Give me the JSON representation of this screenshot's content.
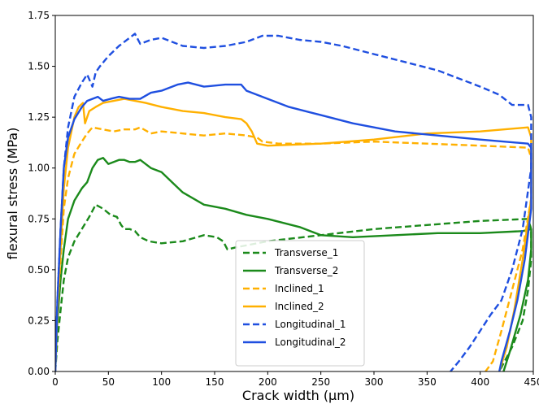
{
  "chart_data": {
    "type": "line",
    "title": "",
    "xlabel": "Crack width (µm)",
    "ylabel": "flexural stress (MPa)",
    "xlim": [
      0,
      450
    ],
    "ylim": [
      0,
      1.75
    ],
    "xticks": [
      0,
      50,
      100,
      150,
      200,
      250,
      300,
      350,
      400,
      450
    ],
    "yticks": [
      0.0,
      0.25,
      0.5,
      0.75,
      1.0,
      1.25,
      1.5,
      1.75
    ],
    "xtick_labels": [
      "0",
      "50",
      "100",
      "150",
      "200",
      "250",
      "300",
      "350",
      "400",
      "450"
    ],
    "ytick_labels": [
      "0.00",
      "0.25",
      "0.50",
      "0.75",
      "1.00",
      "1.25",
      "1.50",
      "1.75"
    ],
    "grid": false,
    "legend_position": "lower-center",
    "series": [
      {
        "name": "Transverse_1",
        "color": "#1b8a1b",
        "dash": "dashed",
        "x": [
          0,
          2,
          5,
          8,
          12,
          18,
          25,
          32,
          38,
          45,
          52,
          58,
          62,
          65,
          70,
          75,
          80,
          88,
          100,
          120,
          140,
          152,
          158,
          162,
          170,
          200,
          250,
          300,
          350,
          400,
          445,
          448,
          448,
          445,
          440,
          430,
          422,
          418
        ],
        "y": [
          0,
          0.15,
          0.3,
          0.45,
          0.56,
          0.64,
          0.7,
          0.76,
          0.82,
          0.8,
          0.77,
          0.76,
          0.72,
          0.7,
          0.7,
          0.69,
          0.66,
          0.64,
          0.63,
          0.64,
          0.67,
          0.66,
          0.64,
          0.6,
          0.61,
          0.64,
          0.67,
          0.7,
          0.72,
          0.74,
          0.75,
          0.7,
          0.55,
          0.4,
          0.25,
          0.12,
          0.04,
          0
        ]
      },
      {
        "name": "Transverse_2",
        "color": "#1b8a1b",
        "dash": "solid",
        "x": [
          0,
          2,
          5,
          8,
          12,
          18,
          25,
          30,
          35,
          40,
          45,
          50,
          55,
          60,
          65,
          70,
          75,
          80,
          90,
          100,
          110,
          120,
          140,
          160,
          180,
          200,
          230,
          250,
          280,
          320,
          360,
          400,
          440,
          448,
          448,
          445,
          438,
          428,
          422
        ],
        "y": [
          0,
          0.25,
          0.45,
          0.6,
          0.75,
          0.84,
          0.9,
          0.93,
          1.0,
          1.04,
          1.05,
          1.02,
          1.03,
          1.04,
          1.04,
          1.03,
          1.03,
          1.04,
          1.0,
          0.98,
          0.93,
          0.88,
          0.82,
          0.8,
          0.77,
          0.75,
          0.71,
          0.67,
          0.66,
          0.67,
          0.68,
          0.68,
          0.69,
          0.7,
          0.6,
          0.45,
          0.28,
          0.1,
          0
        ]
      },
      {
        "name": "Inclined_1",
        "color": "#ffb000",
        "dash": "dashed",
        "x": [
          0,
          2,
          5,
          8,
          12,
          18,
          25,
          30,
          35,
          45,
          55,
          65,
          75,
          80,
          90,
          100,
          120,
          140,
          160,
          180,
          190,
          195,
          210,
          250,
          300,
          350,
          400,
          445,
          448,
          448,
          440,
          430,
          420,
          412,
          405
        ],
        "y": [
          0,
          0.3,
          0.55,
          0.8,
          0.95,
          1.07,
          1.13,
          1.17,
          1.2,
          1.19,
          1.18,
          1.19,
          1.19,
          1.2,
          1.17,
          1.18,
          1.17,
          1.16,
          1.17,
          1.16,
          1.15,
          1.13,
          1.12,
          1.12,
          1.13,
          1.12,
          1.11,
          1.1,
          1.05,
          0.85,
          0.6,
          0.4,
          0.2,
          0.05,
          0
        ]
      },
      {
        "name": "Inclined_2",
        "color": "#ffb000",
        "dash": "solid",
        "x": [
          0,
          2,
          5,
          8,
          12,
          18,
          22,
          26,
          28,
          32,
          38,
          45,
          55,
          65,
          75,
          85,
          100,
          120,
          140,
          160,
          175,
          180,
          185,
          190,
          200,
          250,
          300,
          350,
          400,
          445,
          448,
          448,
          440,
          432,
          425,
          418
        ],
        "y": [
          0,
          0.3,
          0.6,
          0.9,
          1.1,
          1.25,
          1.3,
          1.32,
          1.22,
          1.28,
          1.3,
          1.32,
          1.33,
          1.34,
          1.33,
          1.32,
          1.3,
          1.28,
          1.27,
          1.25,
          1.24,
          1.22,
          1.18,
          1.12,
          1.11,
          1.12,
          1.14,
          1.17,
          1.18,
          1.2,
          1.15,
          0.85,
          0.55,
          0.3,
          0.12,
          0
        ]
      },
      {
        "name": "Longitudinal_1",
        "color": "#1f4fe0",
        "dash": "dashed",
        "x": [
          0,
          2,
          5,
          8,
          12,
          18,
          25,
          30,
          35,
          38,
          42,
          50,
          60,
          70,
          75,
          80,
          90,
          100,
          110,
          120,
          140,
          160,
          180,
          195,
          210,
          230,
          250,
          270,
          300,
          330,
          360,
          380,
          400,
          418,
          430,
          445,
          448,
          448,
          440,
          430,
          420,
          410,
          400,
          390,
          380,
          372
        ],
        "y": [
          0,
          0.35,
          0.7,
          1.0,
          1.2,
          1.35,
          1.42,
          1.46,
          1.4,
          1.47,
          1.5,
          1.55,
          1.6,
          1.64,
          1.66,
          1.61,
          1.63,
          1.64,
          1.62,
          1.6,
          1.59,
          1.6,
          1.62,
          1.65,
          1.65,
          1.63,
          1.62,
          1.6,
          1.56,
          1.52,
          1.48,
          1.44,
          1.4,
          1.36,
          1.31,
          1.31,
          1.25,
          1.0,
          0.7,
          0.5,
          0.35,
          0.28,
          0.2,
          0.12,
          0.05,
          0
        ]
      },
      {
        "name": "Longitudinal_2",
        "color": "#1f4fe0",
        "dash": "solid",
        "x": [
          0,
          2,
          5,
          8,
          12,
          18,
          25,
          30,
          35,
          40,
          45,
          52,
          60,
          70,
          80,
          90,
          100,
          115,
          125,
          140,
          160,
          175,
          180,
          200,
          220,
          250,
          280,
          320,
          360,
          400,
          445,
          448,
          448,
          442,
          435,
          428,
          420,
          418
        ],
        "y": [
          0,
          0.35,
          0.7,
          1.0,
          1.15,
          1.24,
          1.3,
          1.33,
          1.34,
          1.35,
          1.33,
          1.34,
          1.35,
          1.34,
          1.34,
          1.37,
          1.38,
          1.41,
          1.42,
          1.4,
          1.41,
          1.41,
          1.38,
          1.34,
          1.3,
          1.26,
          1.22,
          1.18,
          1.16,
          1.14,
          1.12,
          1.1,
          0.8,
          0.55,
          0.35,
          0.2,
          0.05,
          0
        ]
      }
    ]
  }
}
